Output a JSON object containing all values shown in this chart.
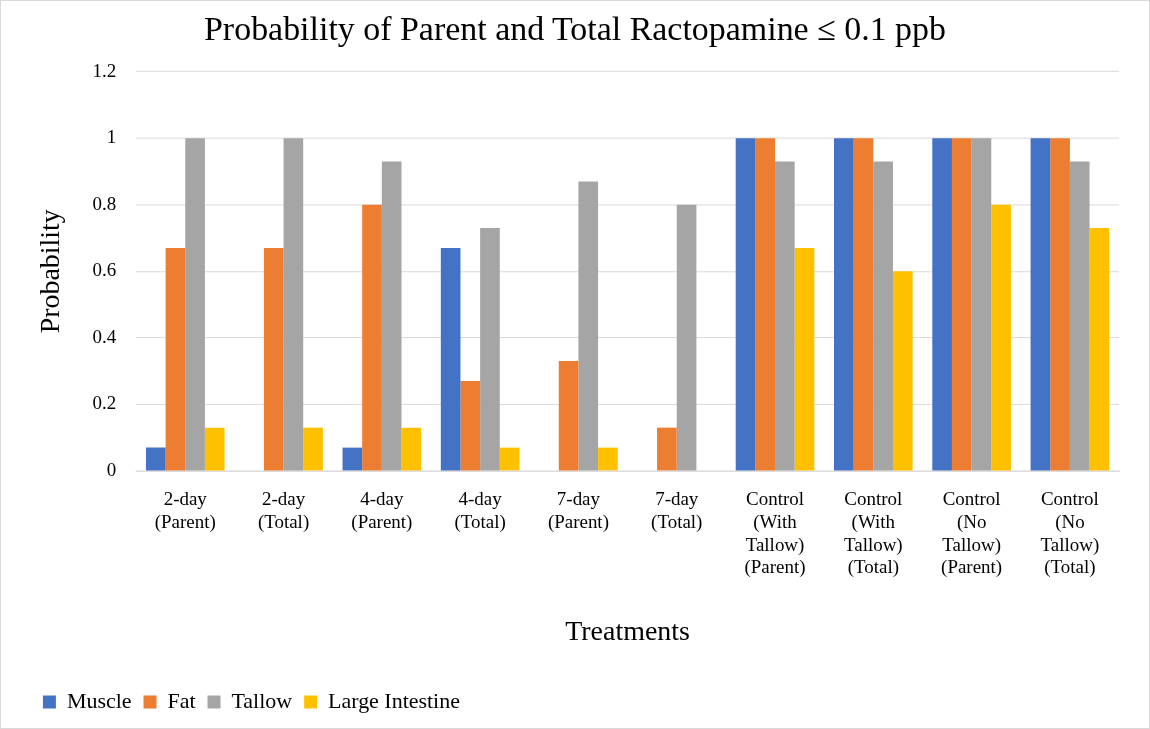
{
  "chart_data": {
    "type": "bar",
    "title": "Probability of Parent and Total Ractopamine ≤ 0.1 ppb",
    "xlabel": "Treatments",
    "ylabel": "Probability",
    "categories": [
      "2-day (Parent)",
      "2-day (Total)",
      "4-day (Parent)",
      "4-day (Total)",
      "7-day (Parent)",
      "7-day (Total)",
      "Control (With Tallow) (Parent)",
      "Control (With Tallow) (Total)",
      "Control (No Tallow) (Parent)",
      "Control (No Tallow) (Total)"
    ],
    "series": [
      {
        "name": "Muscle",
        "color": "#4472c4",
        "values": [
          0.07,
          0,
          0.07,
          0.67,
          0,
          0,
          1,
          1,
          1,
          1
        ]
      },
      {
        "name": "Fat",
        "color": "#ed7d31",
        "values": [
          0.67,
          0.67,
          0.8,
          0.27,
          0.33,
          0.13,
          1,
          1,
          1,
          1
        ]
      },
      {
        "name": "Tallow",
        "color": "#a5a5a5",
        "values": [
          1,
          1,
          0.93,
          0.73,
          0.87,
          0.8,
          0.93,
          0.93,
          1,
          0.93
        ]
      },
      {
        "name": "Large Intestine",
        "color": "#ffc000",
        "values": [
          0.13,
          0.13,
          0.13,
          0.07,
          0.07,
          0,
          0.67,
          0.6,
          0.8,
          0.73
        ]
      }
    ],
    "ylim": [
      0,
      1.2
    ],
    "yticks": [
      0,
      {
        "value": 0.2,
        "label": "0.2"
      },
      {
        "value": 0.4,
        "label": "0.4"
      },
      {
        "value": 0.6,
        "label": "0.6"
      },
      {
        "value": 0.8,
        "label": "0.8"
      },
      1,
      {
        "value": 1.2,
        "label": "1.2"
      }
    ],
    "grid": "y",
    "legend": "bottom left"
  }
}
